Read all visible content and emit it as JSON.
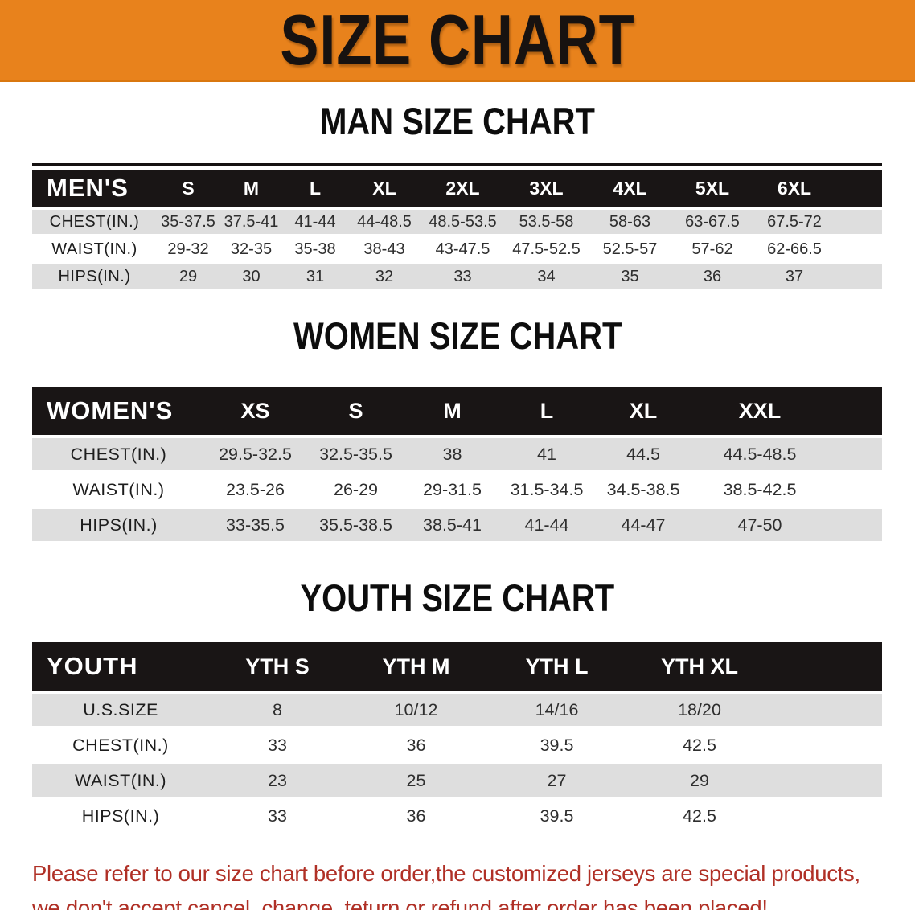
{
  "banner": {
    "title": "SIZE CHART"
  },
  "colors": {
    "banner_bg": "#E8821C",
    "table_header_bg": "#191515",
    "stripe_row_bg": "#DEDEDE",
    "disclaimer_text": "#B03026"
  },
  "sections": [
    {
      "heading": "MAN SIZE CHART",
      "table": {
        "title": "MEN'S",
        "sizes": [
          "S",
          "M",
          "L",
          "XL",
          "2XL",
          "3XL",
          "4XL",
          "5XL",
          "6XL"
        ],
        "rows": [
          {
            "label": "CHEST(IN.)",
            "values": [
              "35-37.5",
              "37.5-41",
              "41-44",
              "44-48.5",
              "48.5-53.5",
              "53.5-58",
              "58-63",
              "63-67.5",
              "67.5-72"
            ]
          },
          {
            "label": "WAIST(IN.)",
            "values": [
              "29-32",
              "32-35",
              "35-38",
              "38-43",
              "43-47.5",
              "47.5-52.5",
              "52.5-57",
              "57-62",
              "62-66.5"
            ]
          },
          {
            "label": "HIPS(IN.)",
            "values": [
              "29",
              "30",
              "31",
              "32",
              "33",
              "34",
              "35",
              "36",
              "37"
            ]
          }
        ]
      }
    },
    {
      "heading": "WOMEN SIZE CHART",
      "table": {
        "title": "WOMEN'S",
        "sizes": [
          "XS",
          "S",
          "M",
          "L",
          "XL",
          "XXL"
        ],
        "rows": [
          {
            "label": "CHEST(IN.)",
            "values": [
              "29.5-32.5",
              "32.5-35.5",
              "38",
              "41",
              "44.5",
              "44.5-48.5"
            ]
          },
          {
            "label": "WAIST(IN.)",
            "values": [
              "23.5-26",
              "26-29",
              "29-31.5",
              "31.5-34.5",
              "34.5-38.5",
              "38.5-42.5"
            ]
          },
          {
            "label": "HIPS(IN.)",
            "values": [
              "33-35.5",
              "35.5-38.5",
              "38.5-41",
              "41-44",
              "44-47",
              "47-50"
            ]
          }
        ]
      }
    },
    {
      "heading": "YOUTH SIZE CHART",
      "table": {
        "title": "YOUTH",
        "sizes": [
          "YTH S",
          "YTH M",
          "YTH L",
          "YTH XL"
        ],
        "rows": [
          {
            "label": "U.S.SIZE",
            "values": [
              "8",
              "10/12",
              "14/16",
              "18/20"
            ]
          },
          {
            "label": "CHEST(IN.)",
            "values": [
              "33",
              "36",
              "39.5",
              "42.5"
            ]
          },
          {
            "label": "WAIST(IN.)",
            "values": [
              "23",
              "25",
              "27",
              "29"
            ]
          },
          {
            "label": "HIPS(IN.)",
            "values": [
              "33",
              "36",
              "39.5",
              "42.5"
            ]
          }
        ]
      }
    }
  ],
  "disclaimer": {
    "line1": "Please refer to our size chart before order,the customized jerseys are special products,",
    "line2": "we don't accept cancel, change, teturn or refund after order has been placed!"
  }
}
